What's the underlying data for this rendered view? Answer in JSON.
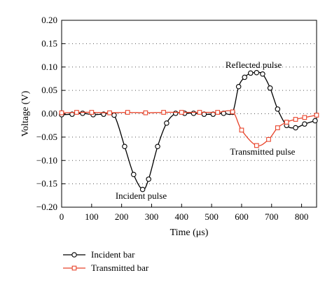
{
  "chart_data": {
    "type": "line",
    "xlabel": "Time (μs)",
    "ylabel": "Voltage (V)",
    "xlim": [
      0,
      850
    ],
    "ylim": [
      -0.2,
      0.2
    ],
    "xticks": [
      "0",
      "100",
      "200",
      "300",
      "400",
      "500",
      "600",
      "700",
      "800"
    ],
    "yticks": [
      "0.20",
      "0.15",
      "0.10",
      "0.05",
      "0.00",
      "−0.05",
      "−0.10",
      "−0.15",
      "−0.20"
    ],
    "grid": "horizontal-dotted",
    "legend_position": "bottom-left",
    "series": [
      {
        "name": "Incident bar",
        "color": "#000000",
        "marker": "circle",
        "x": [
          0,
          35,
          70,
          105,
          140,
          175,
          210,
          240,
          270,
          290,
          320,
          350,
          380,
          410,
          440,
          475,
          505,
          540,
          570,
          590,
          610,
          630,
          650,
          670,
          695,
          720,
          750,
          780,
          810,
          845
        ],
        "y": [
          -0.002,
          -0.001,
          0.001,
          -0.002,
          -0.001,
          -0.003,
          -0.07,
          -0.13,
          -0.162,
          -0.14,
          -0.07,
          -0.02,
          0.001,
          0.001,
          0.001,
          -0.001,
          -0.001,
          0.001,
          0.003,
          0.058,
          0.078,
          0.087,
          0.088,
          0.085,
          0.055,
          0.01,
          -0.025,
          -0.03,
          -0.022,
          -0.015
        ]
      },
      {
        "name": "Transmitted bar",
        "color": "#e8432a",
        "marker": "square",
        "x": [
          0,
          50,
          100,
          160,
          220,
          280,
          340,
          400,
          460,
          520,
          570,
          600,
          650,
          690,
          720,
          750,
          780,
          810,
          850
        ],
        "y": [
          0.002,
          0.003,
          0.003,
          0.002,
          0.003,
          0.002,
          0.003,
          0.003,
          0.003,
          0.003,
          0.004,
          -0.035,
          -0.068,
          -0.055,
          -0.03,
          -0.018,
          -0.012,
          -0.008,
          -0.003
        ]
      }
    ],
    "annotations": [
      {
        "text": "Reflected pulse",
        "x": 640,
        "y": 0.098
      },
      {
        "text": "Transmitted pulse",
        "x": 670,
        "y": -0.088
      },
      {
        "text": "Incident pulse",
        "x": 265,
        "y": -0.182
      }
    ]
  }
}
